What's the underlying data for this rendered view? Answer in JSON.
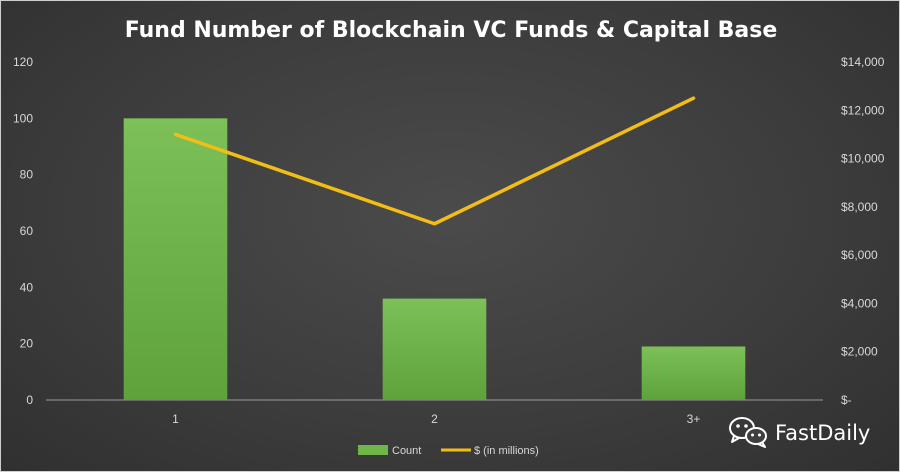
{
  "chart_data": {
    "type": "bar",
    "title": "Fund Number of Blockchain VC Funds & Capital Base",
    "categories": [
      "1",
      "2",
      "3+"
    ],
    "series": [
      {
        "name": "Count",
        "type": "bar",
        "axis": "left",
        "values": [
          100,
          36,
          19
        ]
      },
      {
        "name": "$ (in millions)",
        "type": "line",
        "axis": "right",
        "values": [
          11000,
          7300,
          12500
        ]
      }
    ],
    "y_left": {
      "ylim": [
        0,
        120
      ],
      "ticks": [
        0,
        20,
        40,
        60,
        80,
        100,
        120
      ],
      "tick_labels": [
        "0",
        "20",
        "40",
        "60",
        "80",
        "100",
        "120"
      ]
    },
    "y_right": {
      "ylim": [
        0,
        14000
      ],
      "ticks": [
        0,
        2000,
        4000,
        6000,
        8000,
        10000,
        12000,
        14000
      ],
      "tick_labels": [
        "$-",
        "$2,000",
        "$4,000",
        "$6,000",
        "$8,000",
        "$10,000",
        "$12,000",
        "$14,000"
      ]
    },
    "grid": false,
    "legend": "bottom-center",
    "colors": {
      "bar": "#6fb54a",
      "line": "#f2be16",
      "background": "#3f3f3f",
      "text": "#d8d8d8"
    }
  },
  "watermark": {
    "text": "FastDaily",
    "icon": "wechat-icon"
  }
}
